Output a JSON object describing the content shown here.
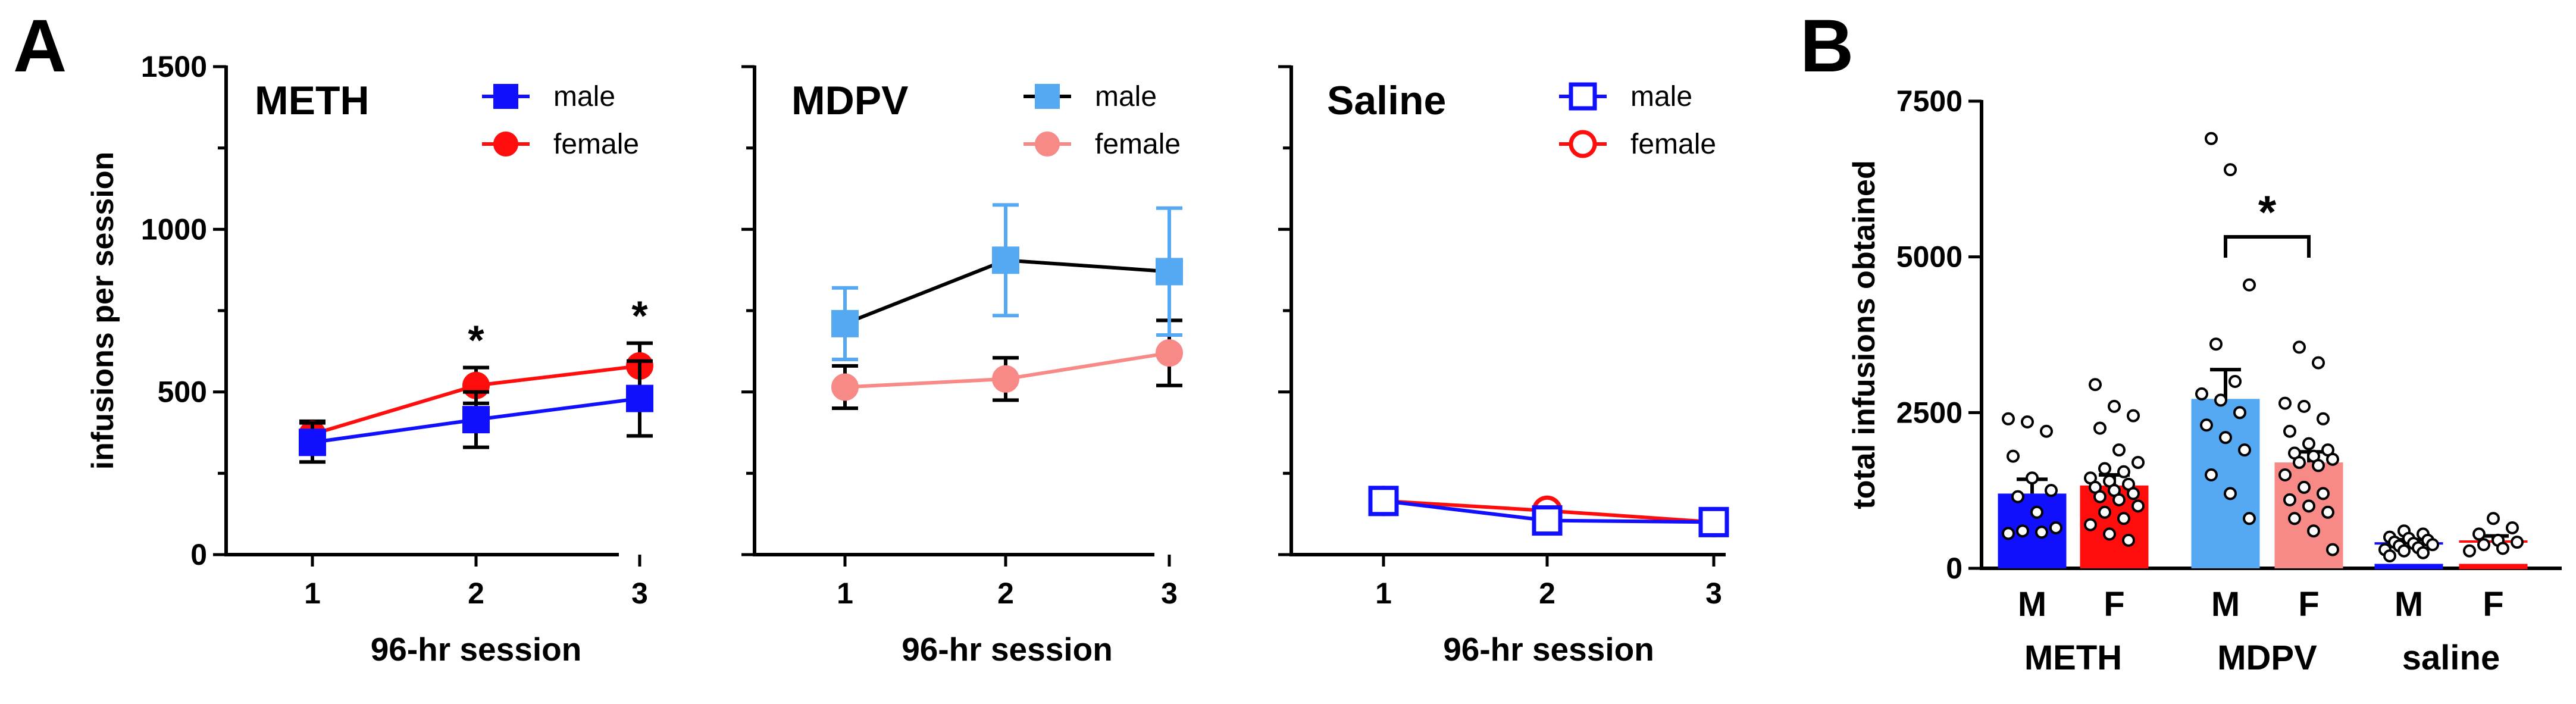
{
  "colors": {
    "meth_male": "#1010ff",
    "meth_female": "#ff0d0d",
    "mdpv_male": "#55a8f2",
    "mdpv_male_line": "#000000",
    "mdpv_female": "#f78a87",
    "saline_male": "#1010ff",
    "saline_female": "#ff0d0d",
    "axis": "#000000",
    "error_bar": "#000000"
  },
  "panel_labels": {
    "a": "A",
    "b": "B"
  },
  "chart_data": [
    {
      "type": "line",
      "panel": "A",
      "title": "METH",
      "xlabel": "96-hr session",
      "ylabel": "infusions per session",
      "x": [
        1,
        2,
        3
      ],
      "xticks": [
        "1",
        "2",
        "3"
      ],
      "ylim": [
        0,
        1500
      ],
      "yticks": [
        "0",
        "500",
        "1000",
        "1500"
      ],
      "legend_position": "top-right",
      "marker_fill": "solid",
      "significance": [
        {
          "x": 2,
          "label": "*"
        },
        {
          "x": 3,
          "label": "*"
        }
      ],
      "series": [
        {
          "name": "male",
          "marker": "square",
          "color_key": "meth_male",
          "line_color_key": "meth_male",
          "values": [
            345,
            415,
            480
          ],
          "errors": [
            60,
            85,
            115
          ]
        },
        {
          "name": "female",
          "marker": "circle",
          "color_key": "meth_female",
          "line_color_key": "meth_female",
          "values": [
            370,
            520,
            580
          ],
          "errors": [
            40,
            55,
            70
          ]
        }
      ]
    },
    {
      "type": "line",
      "panel": "A",
      "title": "MDPV",
      "xlabel": "96-hr session",
      "ylabel": "",
      "x": [
        1,
        2,
        3
      ],
      "xticks": [
        "1",
        "2",
        "3"
      ],
      "ylim": [
        0,
        1500
      ],
      "yticks": [],
      "legend_position": "top-right",
      "marker_fill": "solid",
      "significance": [],
      "series": [
        {
          "name": "male",
          "marker": "square",
          "color_key": "mdpv_male",
          "line_color_key": "mdpv_male_line",
          "values": [
            710,
            905,
            870
          ],
          "errors": [
            110,
            170,
            195
          ]
        },
        {
          "name": "female",
          "marker": "circle",
          "color_key": "mdpv_female",
          "line_color_key": "mdpv_female",
          "values": [
            515,
            540,
            620
          ],
          "errors": [
            65,
            65,
            100
          ]
        }
      ]
    },
    {
      "type": "line",
      "panel": "A",
      "title": "Saline",
      "xlabel": "96-hr session",
      "ylabel": "",
      "x": [
        1,
        2,
        3
      ],
      "xticks": [
        "1",
        "2",
        "3"
      ],
      "ylim": [
        0,
        1500
      ],
      "yticks": [],
      "legend_position": "top-right",
      "marker_fill": "open",
      "significance": [],
      "series": [
        {
          "name": "male",
          "marker": "square",
          "color_key": "saline_male",
          "line_color_key": "saline_male",
          "values": [
            165,
            105,
            100
          ],
          "errors": [
            0,
            0,
            0
          ]
        },
        {
          "name": "female",
          "marker": "circle",
          "color_key": "saline_female",
          "line_color_key": "saline_female",
          "values": [
            165,
            135,
            100
          ],
          "errors": [
            0,
            0,
            0
          ]
        }
      ]
    },
    {
      "type": "bar",
      "panel": "B",
      "title": "",
      "xlabel": "",
      "ylabel": "total infusions obtained",
      "categories": [
        "M",
        "F",
        "M",
        "F",
        "M",
        "F"
      ],
      "groups": [
        {
          "label": "METH",
          "span": [
            0,
            1
          ]
        },
        {
          "label": "MDPV",
          "span": [
            2,
            3
          ]
        },
        {
          "label": "saline",
          "span": [
            4,
            5
          ]
        }
      ],
      "ylim": [
        0,
        7500
      ],
      "yticks": [
        "0",
        "2500",
        "5000",
        "7500"
      ],
      "significance": [
        {
          "from": 2,
          "to": 3,
          "label": "*"
        }
      ],
      "bars": [
        {
          "value": 1200,
          "error": 230,
          "color_key": "meth_male",
          "style": "filled",
          "points": [
            2400,
            2350,
            2200,
            1800,
            1450,
            1250,
            1150,
            900,
            650,
            600,
            580,
            560
          ]
        },
        {
          "value": 1330,
          "error": 170,
          "color_key": "meth_female",
          "style": "filled",
          "points": [
            2950,
            2600,
            2450,
            2250,
            1900,
            1700,
            1600,
            1550,
            1450,
            1400,
            1350,
            1300,
            1250,
            1200,
            1150,
            1100,
            1000,
            900,
            800,
            700,
            550,
            450
          ]
        },
        {
          "value": 2720,
          "error": 470,
          "color_key": "mdpv_male",
          "style": "filled",
          "points": [
            6900,
            6400,
            4550,
            3600,
            3000,
            2800,
            2700,
            2500,
            2300,
            2100,
            1900,
            1500,
            1200,
            800
          ]
        },
        {
          "value": 1700,
          "error": 170,
          "color_key": "mdpv_female",
          "style": "filled",
          "points": [
            3550,
            3300,
            2650,
            2600,
            2400,
            2200,
            2000,
            1900,
            1850,
            1800,
            1750,
            1700,
            1650,
            1500,
            1300,
            1200,
            1100,
            1000,
            900,
            800,
            600,
            300
          ]
        },
        {
          "value": 400,
          "error": 60,
          "color_key": "saline_male",
          "style": "base-line",
          "points": [
            600,
            550,
            500,
            480,
            450,
            420,
            400,
            380,
            360,
            330,
            300,
            280,
            250,
            200
          ]
        },
        {
          "value": 430,
          "error": 90,
          "color_key": "saline_female",
          "style": "base-line",
          "points": [
            800,
            650,
            550,
            450,
            420,
            380,
            320,
            280
          ]
        }
      ]
    }
  ]
}
